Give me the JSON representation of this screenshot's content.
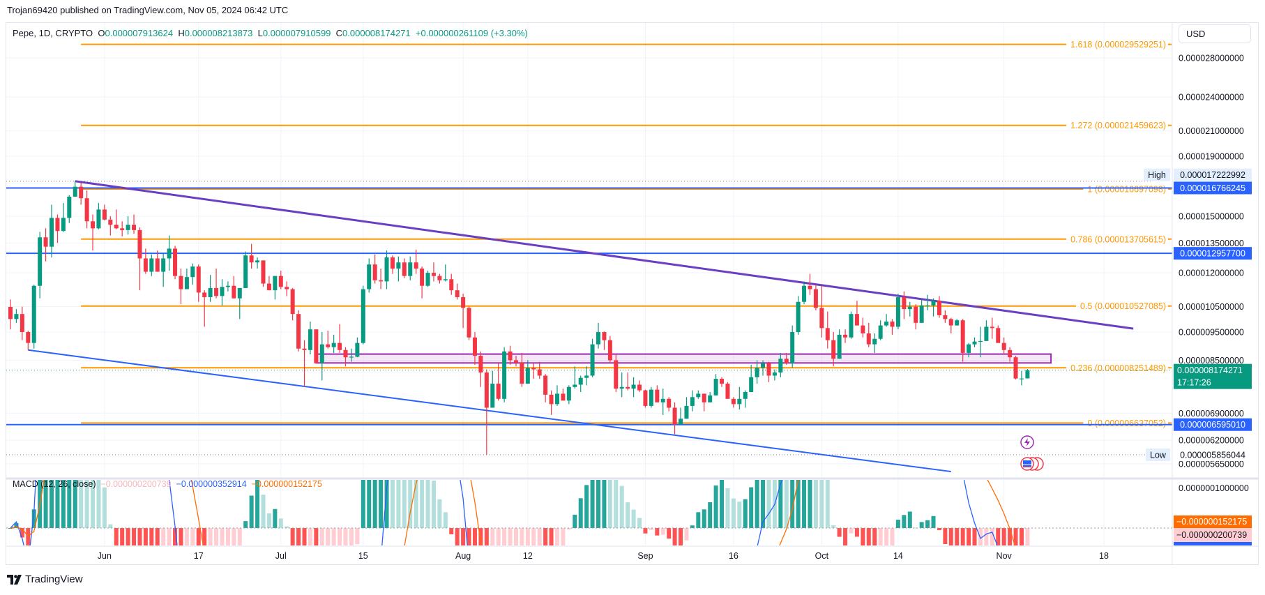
{
  "header": {
    "published": "Trojan69420 published on TradingView.com, Nov 05, 2024 06:42 UTC"
  },
  "legend": {
    "symbol": "Pepe, 1D, CRYPTO",
    "o_label": "O",
    "o": "0.000007913624",
    "h_label": "H",
    "h": "0.000008213873",
    "l_label": "L",
    "l": "0.000007910599",
    "c_label": "C",
    "c": "0.000008174271",
    "change": "+0.000000261109 (+3.30%)"
  },
  "currency": "USD",
  "macd_legend": {
    "title": "MACD (12, 26, close)",
    "histogram": "−0.000000200739",
    "macd": "−0.000000352914",
    "signal": "−0.000000152175"
  },
  "branding": {
    "logo_text": "TradingView"
  },
  "colors": {
    "up": "#089981",
    "down": "#f23645",
    "fib": "#ff9800",
    "hline": "#2962ff",
    "trend_upper": "#6a3fc1",
    "trend_lower": "#2962ff",
    "zone": "#9c27b0",
    "macd": "#2962ff",
    "signal": "#ff6d00"
  },
  "chart_data": {
    "type": "candlestick",
    "title": "Pepe, 1D, CRYPTO",
    "price_unit": "1e-6 USD",
    "scale": "log",
    "ylim": [
      5.65,
      28
    ],
    "first_date": "2024-05-16",
    "last_date": "2024-11-05",
    "ohlc": [
      [
        10.49,
        10.8,
        9.6,
        10.0
      ],
      [
        10.0,
        10.4,
        9.85,
        10.2
      ],
      [
        10.2,
        10.5,
        9.2,
        9.5
      ],
      [
        9.5,
        9.55,
        8.85,
        9.1
      ],
      [
        9.1,
        11.45,
        8.9,
        11.4
      ],
      [
        11.4,
        14.1,
        10.85,
        13.8
      ],
      [
        13.8,
        14.3,
        12.55,
        13.3
      ],
      [
        13.3,
        15.7,
        12.75,
        14.9
      ],
      [
        14.9,
        15.1,
        13.5,
        14.15
      ],
      [
        14.15,
        15.8,
        14.1,
        14.9
      ],
      [
        14.9,
        16.3,
        14.6,
        16.2
      ],
      [
        16.2,
        17.22,
        16.2,
        16.85
      ],
      [
        16.85,
        17.1,
        15.7,
        16.1
      ],
      [
        16.1,
        16.6,
        14.3,
        14.7
      ],
      [
        14.7,
        15.1,
        13.1,
        14.3
      ],
      [
        14.3,
        15.8,
        14.25,
        15.4
      ],
      [
        15.4,
        15.7,
        14.75,
        14.8
      ],
      [
        14.8,
        15.0,
        13.9,
        14.5
      ],
      [
        14.5,
        15.4,
        14.25,
        14.3
      ],
      [
        14.3,
        14.7,
        13.85,
        14.2
      ],
      [
        14.2,
        15.0,
        13.95,
        14.5
      ],
      [
        14.5,
        15.1,
        14.0,
        14.2
      ],
      [
        14.2,
        14.35,
        11.2,
        12.7
      ],
      [
        12.7,
        13.2,
        11.95,
        12.05
      ],
      [
        12.05,
        12.9,
        11.85,
        12.7
      ],
      [
        12.7,
        13.1,
        12.05,
        12.05
      ],
      [
        12.05,
        12.95,
        11.35,
        12.7
      ],
      [
        12.7,
        13.9,
        12.1,
        13.2
      ],
      [
        13.2,
        13.35,
        11.7,
        11.85
      ],
      [
        11.85,
        12.2,
        10.6,
        11.25
      ],
      [
        11.25,
        12.2,
        11.25,
        11.8
      ],
      [
        11.8,
        12.45,
        11.45,
        12.3
      ],
      [
        12.3,
        12.4,
        10.7,
        11.1
      ],
      [
        11.1,
        11.2,
        9.7,
        10.9
      ],
      [
        10.9,
        11.9,
        10.7,
        11.3
      ],
      [
        11.3,
        12.2,
        10.85,
        10.95
      ],
      [
        10.95,
        11.7,
        10.55,
        11.35
      ],
      [
        11.35,
        11.6,
        11.15,
        11.4
      ],
      [
        11.4,
        11.85,
        10.85,
        10.85
      ],
      [
        10.85,
        11.3,
        10.0,
        11.3
      ],
      [
        11.3,
        13.05,
        11.3,
        12.85
      ],
      [
        12.85,
        13.45,
        12.2,
        12.5
      ],
      [
        12.5,
        12.75,
        12.2,
        12.6
      ],
      [
        12.6,
        12.6,
        11.35,
        11.5
      ],
      [
        11.5,
        11.85,
        11.2,
        11.2
      ],
      [
        11.2,
        11.85,
        10.8,
        11.85
      ],
      [
        11.85,
        12.1,
        11.25,
        11.35
      ],
      [
        11.35,
        11.6,
        10.95,
        11.25
      ],
      [
        11.25,
        11.3,
        9.95,
        10.2
      ],
      [
        10.2,
        10.35,
        8.8,
        8.9
      ],
      [
        8.9,
        9.2,
        7.65,
        8.85
      ],
      [
        8.85,
        9.9,
        8.7,
        9.6
      ],
      [
        9.6,
        9.6,
        8.4,
        8.4
      ],
      [
        8.4,
        9.5,
        7.85,
        9.05
      ],
      [
        9.05,
        9.55,
        8.9,
        8.95
      ],
      [
        8.95,
        9.4,
        8.75,
        9.1
      ],
      [
        9.1,
        9.8,
        8.75,
        8.85
      ],
      [
        8.85,
        8.95,
        8.3,
        8.6
      ],
      [
        8.6,
        8.9,
        8.45,
        8.62
      ],
      [
        8.62,
        9.3,
        8.6,
        9.1
      ],
      [
        9.1,
        11.4,
        9.05,
        11.25
      ],
      [
        11.25,
        12.7,
        11.1,
        12.4
      ],
      [
        12.4,
        12.9,
        11.5,
        11.65
      ],
      [
        11.65,
        12.2,
        11.25,
        11.6
      ],
      [
        11.6,
        13.1,
        11.25,
        12.75
      ],
      [
        12.75,
        12.85,
        11.95,
        12.2
      ],
      [
        12.2,
        12.8,
        11.6,
        12.5
      ],
      [
        12.5,
        12.7,
        11.75,
        11.85
      ],
      [
        11.85,
        12.8,
        11.65,
        12.5
      ],
      [
        12.5,
        13.15,
        11.95,
        12.2
      ],
      [
        12.2,
        12.3,
        10.85,
        11.4
      ],
      [
        11.4,
        12.1,
        11.35,
        12.0
      ],
      [
        12.0,
        12.5,
        11.6,
        11.85
      ],
      [
        11.85,
        11.95,
        11.5,
        11.65
      ],
      [
        11.65,
        12.4,
        11.6,
        11.7
      ],
      [
        11.7,
        11.95,
        11.0,
        11.2
      ],
      [
        11.2,
        11.5,
        10.8,
        10.9
      ],
      [
        10.9,
        11.05,
        9.65,
        10.45
      ],
      [
        10.45,
        10.5,
        9.2,
        9.3
      ],
      [
        9.3,
        9.5,
        8.35,
        8.65
      ],
      [
        8.65,
        8.8,
        7.65,
        8.1
      ],
      [
        8.1,
        8.2,
        5.86,
        7.05
      ],
      [
        7.05,
        8.15,
        7.05,
        7.75
      ],
      [
        7.75,
        8.4,
        7.25,
        7.3
      ],
      [
        7.3,
        8.95,
        7.2,
        8.8
      ],
      [
        8.8,
        9.0,
        8.35,
        8.5
      ],
      [
        8.5,
        8.65,
        8.3,
        8.42
      ],
      [
        8.42,
        8.75,
        7.65,
        7.75
      ],
      [
        7.75,
        8.5,
        7.75,
        8.25
      ],
      [
        8.25,
        8.4,
        7.9,
        8.2
      ],
      [
        8.2,
        8.45,
        7.9,
        8.0
      ],
      [
        8.0,
        8.05,
        7.2,
        7.42
      ],
      [
        7.42,
        7.55,
        6.85,
        7.15
      ],
      [
        7.15,
        7.7,
        7.1,
        7.45
      ],
      [
        7.45,
        7.6,
        7.25,
        7.25
      ],
      [
        7.25,
        7.7,
        7.15,
        7.65
      ],
      [
        7.65,
        8.3,
        7.6,
        7.72
      ],
      [
        7.72,
        8.0,
        7.5,
        7.93
      ],
      [
        7.93,
        8.3,
        7.7,
        8.0
      ],
      [
        8.0,
        9.25,
        7.95,
        9.05
      ],
      [
        9.05,
        9.85,
        8.9,
        9.5
      ],
      [
        9.5,
        9.52,
        8.85,
        9.2
      ],
      [
        9.2,
        9.35,
        8.4,
        8.5
      ],
      [
        8.5,
        8.7,
        7.5,
        7.6
      ],
      [
        7.6,
        8.1,
        7.35,
        7.65
      ],
      [
        7.65,
        8.1,
        7.55,
        7.6
      ],
      [
        7.6,
        7.95,
        7.35,
        7.72
      ],
      [
        7.72,
        7.85,
        7.5,
        7.55
      ],
      [
        7.55,
        7.57,
        7.05,
        7.1
      ],
      [
        7.1,
        7.65,
        7.05,
        7.57
      ],
      [
        7.57,
        7.7,
        7.2,
        7.2
      ],
      [
        7.2,
        7.6,
        6.85,
        7.3
      ],
      [
        7.3,
        7.35,
        6.95,
        7.05
      ],
      [
        7.05,
        7.2,
        6.35,
        6.6
      ],
      [
        6.6,
        7.05,
        6.6,
        6.75
      ],
      [
        6.75,
        7.35,
        6.75,
        7.1
      ],
      [
        7.1,
        7.55,
        6.95,
        7.35
      ],
      [
        7.35,
        7.55,
        7.3,
        7.45
      ],
      [
        7.45,
        7.45,
        6.95,
        7.2
      ],
      [
        7.2,
        7.5,
        7.2,
        7.4
      ],
      [
        7.4,
        8.05,
        7.4,
        7.9
      ],
      [
        7.9,
        7.95,
        7.65,
        7.75
      ],
      [
        7.75,
        7.8,
        7.3,
        7.3
      ],
      [
        7.3,
        7.35,
        7.05,
        7.15
      ],
      [
        7.15,
        7.65,
        7.0,
        7.3
      ],
      [
        7.3,
        7.55,
        7.05,
        7.5
      ],
      [
        7.5,
        8.35,
        7.5,
        7.95
      ],
      [
        7.95,
        8.5,
        7.75,
        8.25
      ],
      [
        8.25,
        8.5,
        8.0,
        8.4
      ],
      [
        8.4,
        8.45,
        7.8,
        8.0
      ],
      [
        8.0,
        8.2,
        7.85,
        8.1
      ],
      [
        8.1,
        8.75,
        7.95,
        8.55
      ],
      [
        8.55,
        8.75,
        8.35,
        8.4
      ],
      [
        8.4,
        9.75,
        8.25,
        9.5
      ],
      [
        9.5,
        10.95,
        9.4,
        10.7
      ],
      [
        10.7,
        11.6,
        10.6,
        11.4
      ],
      [
        11.4,
        11.95,
        11.0,
        11.25
      ],
      [
        11.25,
        11.45,
        10.35,
        10.45
      ],
      [
        10.45,
        11.4,
        9.3,
        9.65
      ],
      [
        9.65,
        10.3,
        8.9,
        9.2
      ],
      [
        9.2,
        9.5,
        8.3,
        8.55
      ],
      [
        8.55,
        9.6,
        8.55,
        9.4
      ],
      [
        9.4,
        9.6,
        9.1,
        9.3
      ],
      [
        9.3,
        10.3,
        9.25,
        10.2
      ],
      [
        10.2,
        10.75,
        9.75,
        9.75
      ],
      [
        9.75,
        10.05,
        9.3,
        9.45
      ],
      [
        9.45,
        9.85,
        8.95,
        9.05
      ],
      [
        9.05,
        9.45,
        8.75,
        9.25
      ],
      [
        9.25,
        9.95,
        9.2,
        9.75
      ],
      [
        9.75,
        10.2,
        9.7,
        9.9
      ],
      [
        9.9,
        10.0,
        9.4,
        9.7
      ],
      [
        9.7,
        11.05,
        9.6,
        10.9
      ],
      [
        10.9,
        11.15,
        10.0,
        10.4
      ],
      [
        10.4,
        10.7,
        10.1,
        10.5
      ],
      [
        10.5,
        10.6,
        9.6,
        9.85
      ],
      [
        9.85,
        10.8,
        9.85,
        10.55
      ],
      [
        10.55,
        11.0,
        10.35,
        10.55
      ],
      [
        10.55,
        10.85,
        10.1,
        10.75
      ],
      [
        10.75,
        10.95,
        10.05,
        10.15
      ],
      [
        10.15,
        10.35,
        9.85,
        10.0
      ],
      [
        10.0,
        10.05,
        9.45,
        9.75
      ],
      [
        9.75,
        10.0,
        9.75,
        9.95
      ],
      [
        9.95,
        10.0,
        8.45,
        8.75
      ],
      [
        8.75,
        9.1,
        8.6,
        9.05
      ],
      [
        9.05,
        9.3,
        8.95,
        9.15
      ],
      [
        9.15,
        9.7,
        8.6,
        9.17
      ],
      [
        9.17,
        9.95,
        9.17,
        9.7
      ],
      [
        9.7,
        10.05,
        9.25,
        9.65
      ],
      [
        9.65,
        9.75,
        9.1,
        9.1
      ],
      [
        9.1,
        9.3,
        8.7,
        8.85
      ],
      [
        8.85,
        8.95,
        8.45,
        8.6
      ],
      [
        8.6,
        8.65,
        7.88,
        7.91
      ],
      [
        7.91,
        8.15,
        7.7,
        7.91
      ],
      [
        7.914,
        8.214,
        7.911,
        8.174
      ]
    ],
    "price_axis_labels": [
      "0.000028000000",
      "0.000024000000",
      "0.000021000000",
      "0.000019000000",
      "0.000015000000",
      "0.000013500000",
      "0.000012000000",
      "0.000010500000",
      "0.000009500000",
      "0.000008500000",
      "0.000006900000",
      "0.000006200000",
      "0.000005650000"
    ],
    "time_axis": [
      {
        "label": "Jun",
        "index": 16
      },
      {
        "label": "17",
        "index": 32
      },
      {
        "label": "Jul",
        "index": 46
      },
      {
        "label": "15",
        "index": 60
      },
      {
        "label": "Aug",
        "index": 77
      },
      {
        "label": "12",
        "index": 88
      },
      {
        "label": "Sep",
        "index": 108
      },
      {
        "label": "16",
        "index": 123
      },
      {
        "label": "Oct",
        "index": 138
      },
      {
        "label": "14",
        "index": 151
      },
      {
        "label": "Nov",
        "index": 169
      },
      {
        "label": "18",
        "index": 186
      }
    ],
    "fib_levels": [
      {
        "label": "1.618 (0.000029529251)",
        "price": 29.529251
      },
      {
        "label": "1.272 (0.000021459623)",
        "price": 21.459623
      },
      {
        "label": "1 (0.000016697098)",
        "price": 16.697098
      },
      {
        "label": "0.786 (0.000013705615)",
        "price": 13.705615
      },
      {
        "label": "0.5 (0.000010527085)",
        "price": 10.527085
      },
      {
        "label": "0.236 (0.000008251489)",
        "price": 8.251489
      },
      {
        "label": "0 (0.000006637052)",
        "price": 6.637052
      }
    ],
    "fib_start_index": 12,
    "horizontal_lines": [
      {
        "label": "0.000016766245",
        "price": 16.766245
      },
      {
        "label": "0.000012957700",
        "price": 12.9577
      },
      {
        "label": "0.000006595010",
        "price": 6.59501
      }
    ],
    "high": {
      "label": "High",
      "value": "0.000017222992",
      "price": 17.222992
    },
    "low": {
      "label": "Low",
      "value": "0.000005856044",
      "price": 5.856044
    },
    "last_price": {
      "value": "0.000008174271",
      "price": 8.174271,
      "countdown": "17:17:26"
    },
    "trend_upper": {
      "from": {
        "index": 11,
        "price": 17.22
      },
      "to": {
        "index": 191,
        "price": 9.63
      }
    },
    "trend_lower": {
      "from": {
        "index": 3,
        "price": 8.85
      },
      "to": {
        "index": 160,
        "price": 5.48
      }
    },
    "zone": {
      "from_index": 52,
      "to_index": 177,
      "top": 8.71,
      "bottom": 8.41
    },
    "macd": {
      "fast": 12,
      "slow": 26,
      "signal": 9,
      "source": "close",
      "axis_label": "0.0000001000000",
      "signal_value": "−0.000000152175",
      "histogram_value": "−0.000000200739"
    }
  }
}
